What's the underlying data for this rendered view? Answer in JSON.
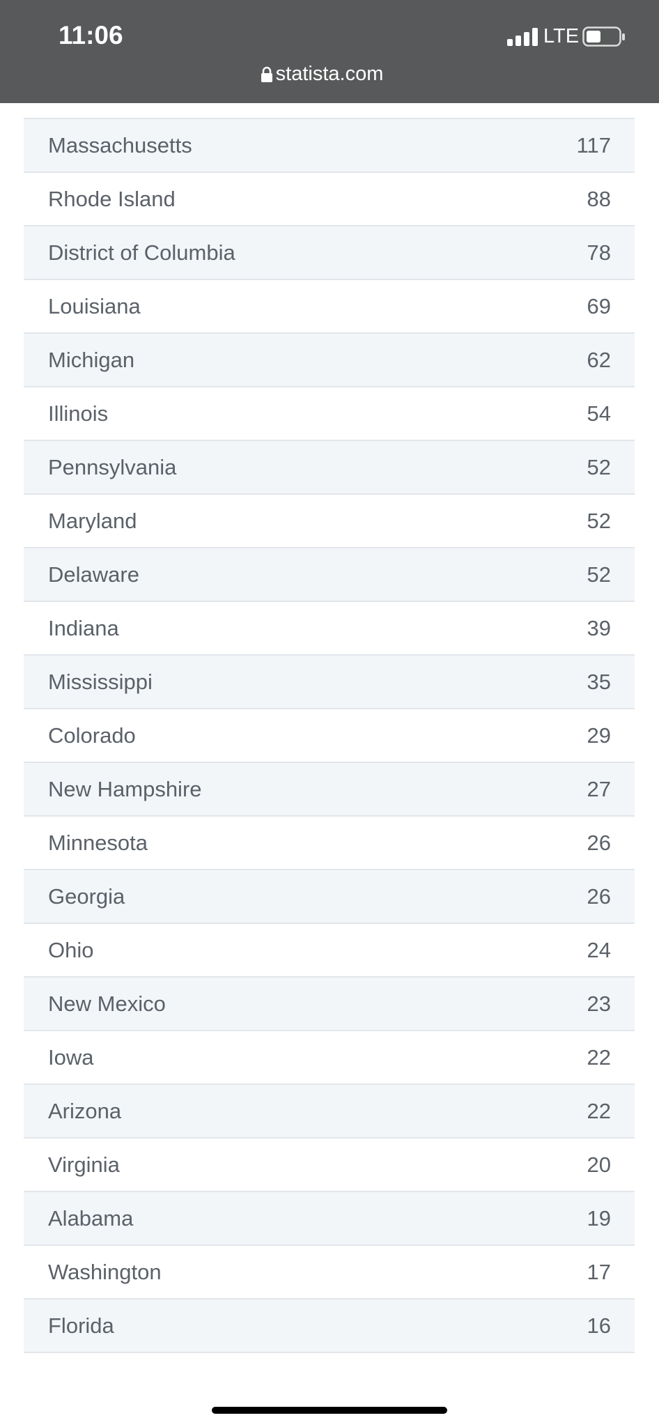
{
  "status_bar": {
    "time": "11:06",
    "network": "LTE",
    "url": "statista.com"
  },
  "table": {
    "rows": [
      [
        "Massachusetts",
        117
      ],
      [
        "Rhode Island",
        88
      ],
      [
        "District of Columbia",
        78
      ],
      [
        "Louisiana",
        69
      ],
      [
        "Michigan",
        62
      ],
      [
        "Illinois",
        54
      ],
      [
        "Pennsylvania",
        52
      ],
      [
        "Maryland",
        52
      ],
      [
        "Delaware",
        52
      ],
      [
        "Indiana",
        39
      ],
      [
        "Mississippi",
        35
      ],
      [
        "Colorado",
        29
      ],
      [
        "New Hampshire",
        27
      ],
      [
        "Minnesota",
        26
      ],
      [
        "Georgia",
        26
      ],
      [
        "Ohio",
        24
      ],
      [
        "New Mexico",
        23
      ],
      [
        "Iowa",
        22
      ],
      [
        "Arizona",
        22
      ],
      [
        "Virginia",
        20
      ],
      [
        "Alabama",
        19
      ],
      [
        "Washington",
        17
      ],
      [
        "Florida",
        16
      ]
    ]
  }
}
